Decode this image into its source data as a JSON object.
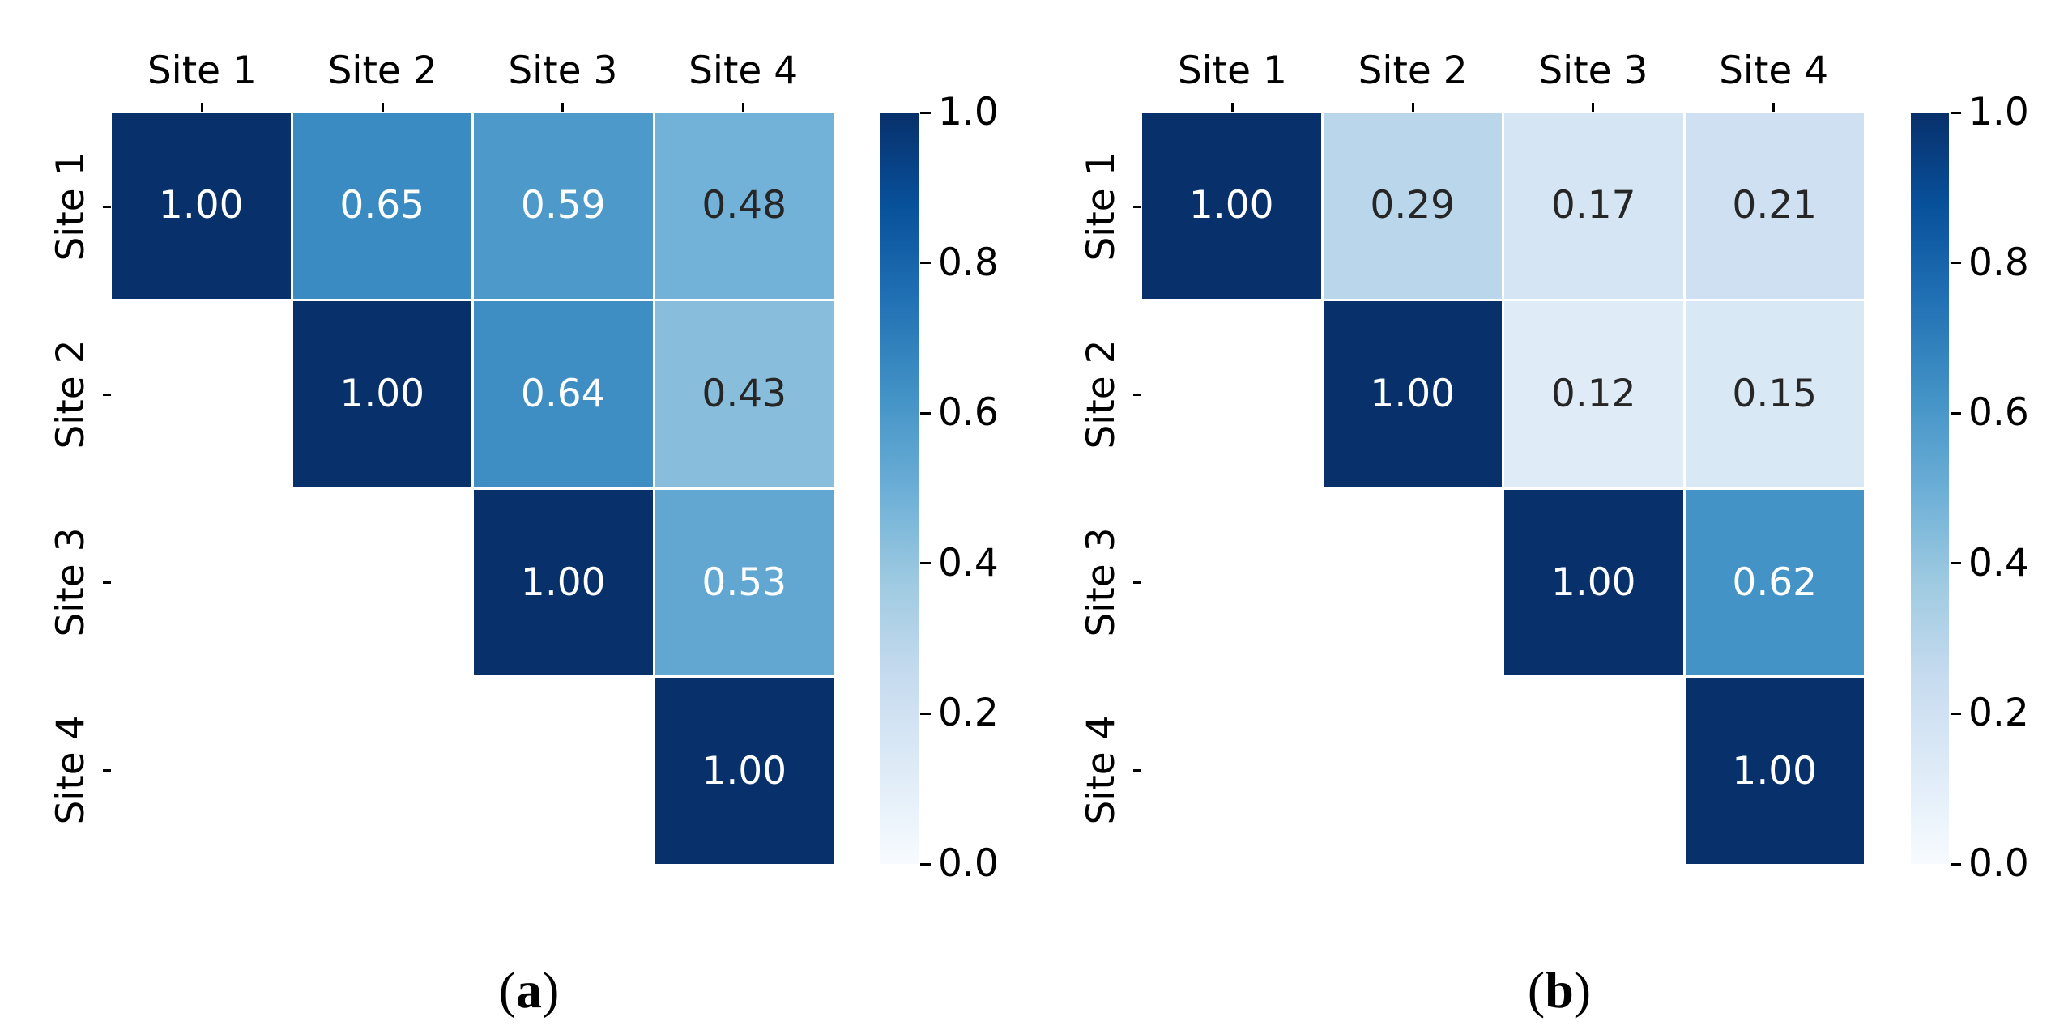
{
  "chart_data": [
    {
      "type": "heatmap",
      "panel": "a",
      "x_labels": [
        "Site 1",
        "Site 2",
        "Site 3",
        "Site 4"
      ],
      "y_labels": [
        "Site 1",
        "Site 2",
        "Site 3",
        "Site 4"
      ],
      "values": [
        [
          1.0,
          0.65,
          0.59,
          0.48
        ],
        [
          null,
          1.0,
          0.64,
          0.43
        ],
        [
          null,
          null,
          1.0,
          0.53
        ],
        [
          null,
          null,
          null,
          1.0
        ]
      ],
      "mask": "lower-triangle-hidden",
      "value_format_decimals": 2,
      "colormap": "Blues",
      "vmin": 0.0,
      "vmax": 1.0,
      "colorbar_ticks": [
        1.0,
        0.8,
        0.6,
        0.4,
        0.2,
        0.0
      ],
      "colorbar_position": "right",
      "grid": false
    },
    {
      "type": "heatmap",
      "panel": "b",
      "x_labels": [
        "Site 1",
        "Site 2",
        "Site 3",
        "Site 4"
      ],
      "y_labels": [
        "Site 1",
        "Site 2",
        "Site 3",
        "Site 4"
      ],
      "values": [
        [
          1.0,
          0.29,
          0.17,
          0.21
        ],
        [
          null,
          1.0,
          0.12,
          0.15
        ],
        [
          null,
          null,
          1.0,
          0.62
        ],
        [
          null,
          null,
          null,
          1.0
        ]
      ],
      "mask": "lower-triangle-hidden",
      "value_format_decimals": 2,
      "colormap": "Blues",
      "vmin": 0.0,
      "vmax": 1.0,
      "colorbar_ticks": [
        1.0,
        0.8,
        0.6,
        0.4,
        0.2,
        0.0
      ],
      "colorbar_position": "right",
      "grid": false
    }
  ],
  "figure": {
    "background": "#ffffff",
    "captions": [
      "(a)",
      "(b)"
    ],
    "label_color": "#000000",
    "annot_text_light": "#ffffff",
    "annot_text_dark": "#262626",
    "white_text_threshold": 0.5,
    "colormap_stops": [
      "#f7fbff",
      "#deebf7",
      "#c6dbef",
      "#9ecae1",
      "#6baed6",
      "#4292c6",
      "#2171b5",
      "#08519c",
      "#08306b"
    ]
  }
}
